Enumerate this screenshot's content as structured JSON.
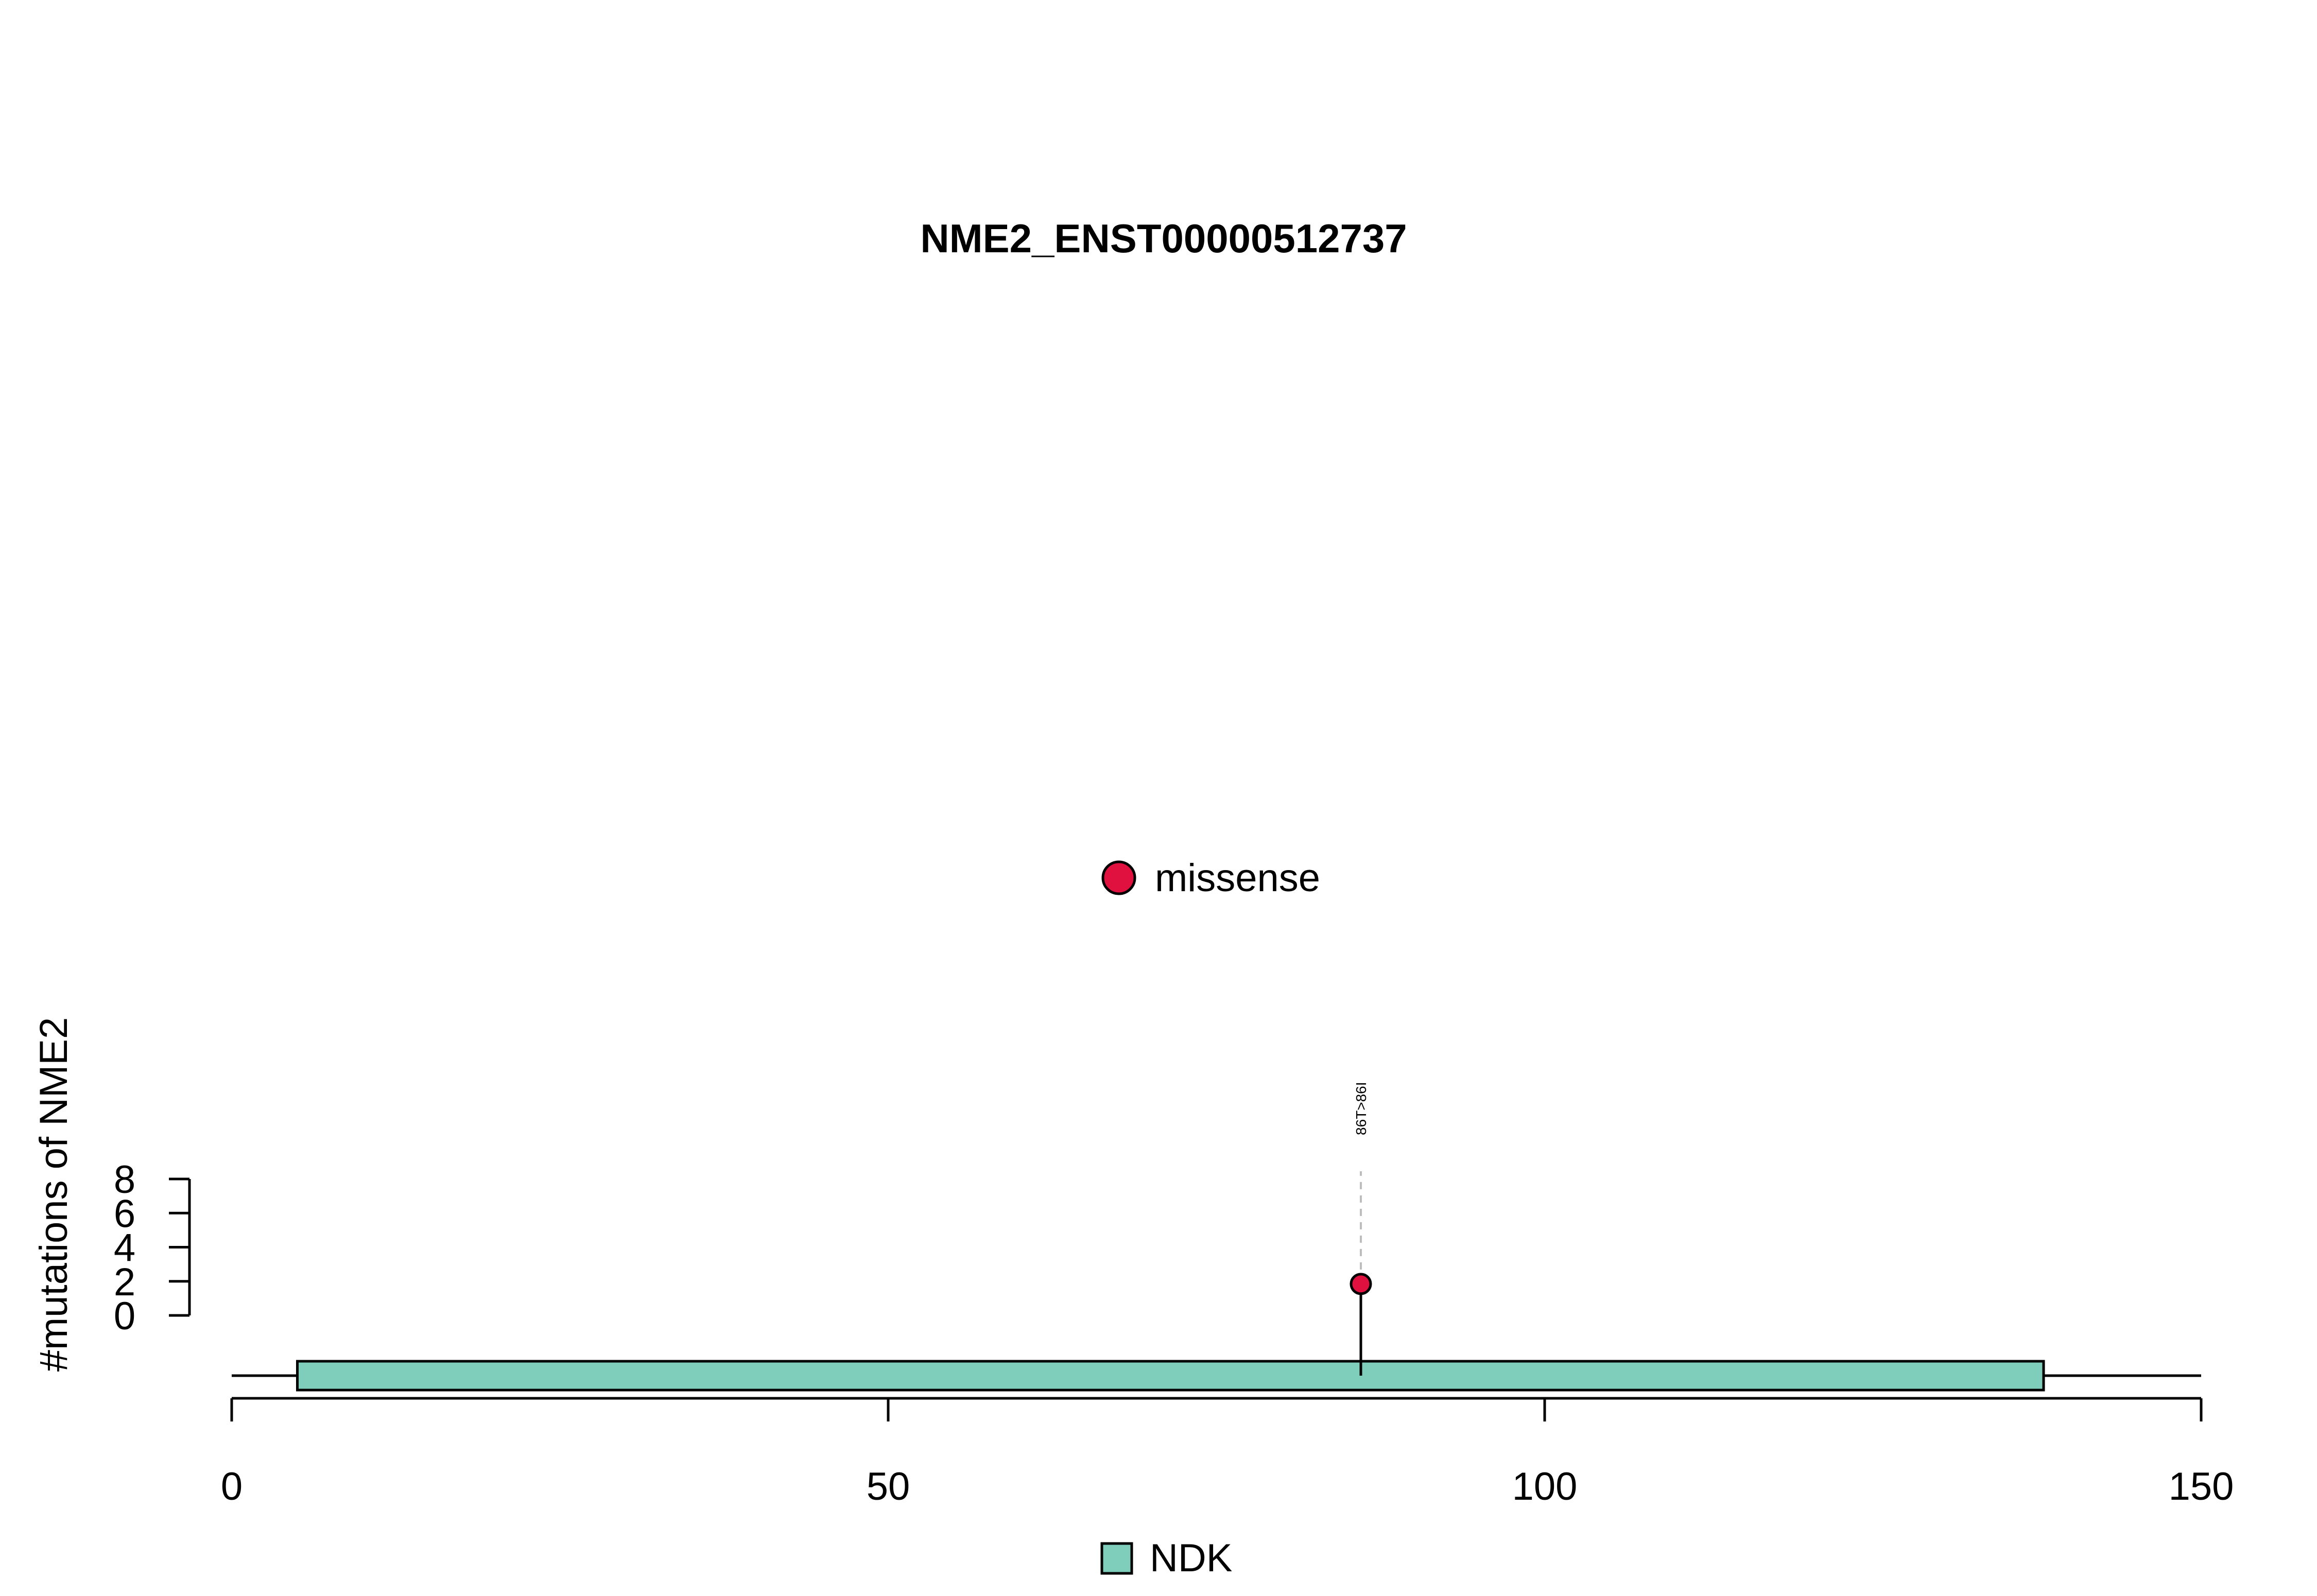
{
  "chart_data": {
    "type": "lollipop",
    "title": "NME2_ENST00000512737",
    "ylabel": "#mutations of NME2",
    "xlabel": "",
    "xlim": [
      0,
      150
    ],
    "x_ticks": [
      "0",
      "50",
      "100",
      "150"
    ],
    "ylim": [
      0,
      8
    ],
    "y_ticks": [
      "0",
      "2",
      "4",
      "6",
      "8"
    ],
    "protein_length": 150,
    "domains": [
      {
        "name": "NDK",
        "start": 5,
        "end": 138,
        "color": "#7fcdbb"
      }
    ],
    "mutations": [
      {
        "position": 86,
        "label": "86T>86I",
        "count": 1,
        "type": "missense",
        "color": "#e0103f"
      }
    ],
    "mutation_legend": [
      {
        "label": "missense",
        "color": "#e0103f"
      }
    ],
    "domain_legend": [
      {
        "label": "NDK",
        "color": "#7fcdbb"
      }
    ]
  }
}
